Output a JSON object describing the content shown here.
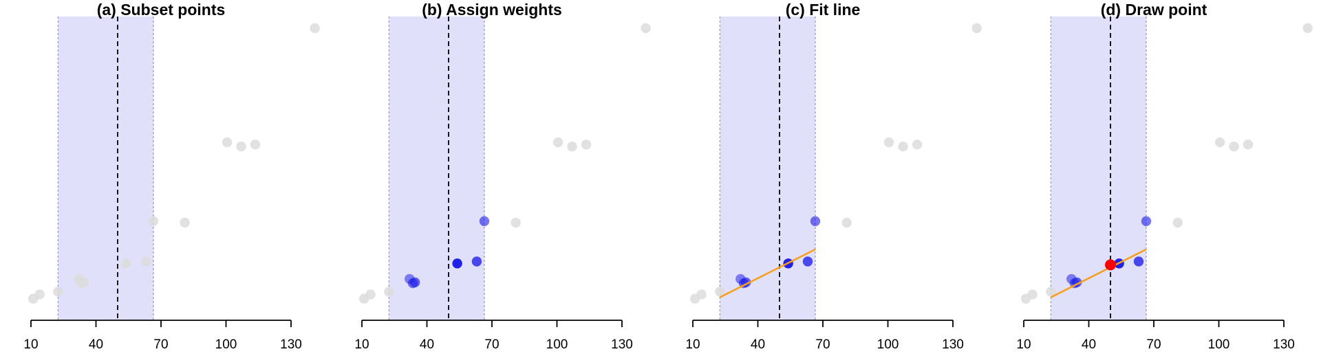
{
  "chart_data": {
    "type": "scatter",
    "xticks": [
      10,
      40,
      70,
      100,
      130
    ],
    "xlim": [
      10,
      130
    ],
    "ylim": [
      0,
      1
    ],
    "axes": {
      "y_axis_visible": false,
      "grid": false
    },
    "points": [
      {
        "x": 11.0,
        "y": 0.04
      },
      {
        "x": 14.0,
        "y": 0.055
      },
      {
        "x": 22.5,
        "y": 0.065
      },
      {
        "x": 32.0,
        "y": 0.11
      },
      {
        "x": 33.5,
        "y": 0.095
      },
      {
        "x": 34.5,
        "y": 0.098
      },
      {
        "x": 54.0,
        "y": 0.165
      },
      {
        "x": 63.0,
        "y": 0.172
      },
      {
        "x": 66.5,
        "y": 0.315
      },
      {
        "x": 81.0,
        "y": 0.31
      },
      {
        "x": 100.5,
        "y": 0.595
      },
      {
        "x": 107.0,
        "y": 0.58
      },
      {
        "x": 113.5,
        "y": 0.587
      },
      {
        "x": 141.0,
        "y": 1.0
      }
    ],
    "window": {
      "center": 50.0,
      "lower": 22.5,
      "upper": 66.5
    },
    "fitted_line": {
      "x": [
        22.5,
        66.5
      ],
      "y": [
        0.045,
        0.215
      ]
    },
    "drawn_point": {
      "x": 50.0,
      "y": 0.16
    },
    "colors": {
      "background_point": "#dcdcdc",
      "weighted_point": "#1f1fe6",
      "window_fill": "#e0e0fb",
      "window_border": "#9a9ab4",
      "center_line": "#000000",
      "fit_line": "#f5a01e",
      "drawn_point": "#ff0000"
    },
    "panels": [
      {
        "title": "(a) Subset points",
        "show_weights": false,
        "show_fit": false,
        "show_drawn": false
      },
      {
        "title": "(b) Assign weights",
        "show_weights": true,
        "show_fit": false,
        "show_drawn": false
      },
      {
        "title": "(c) Fit line",
        "show_weights": true,
        "show_fit": true,
        "show_drawn": false
      },
      {
        "title": "(d) Draw point",
        "show_weights": true,
        "show_fit": true,
        "show_drawn": true
      }
    ]
  }
}
